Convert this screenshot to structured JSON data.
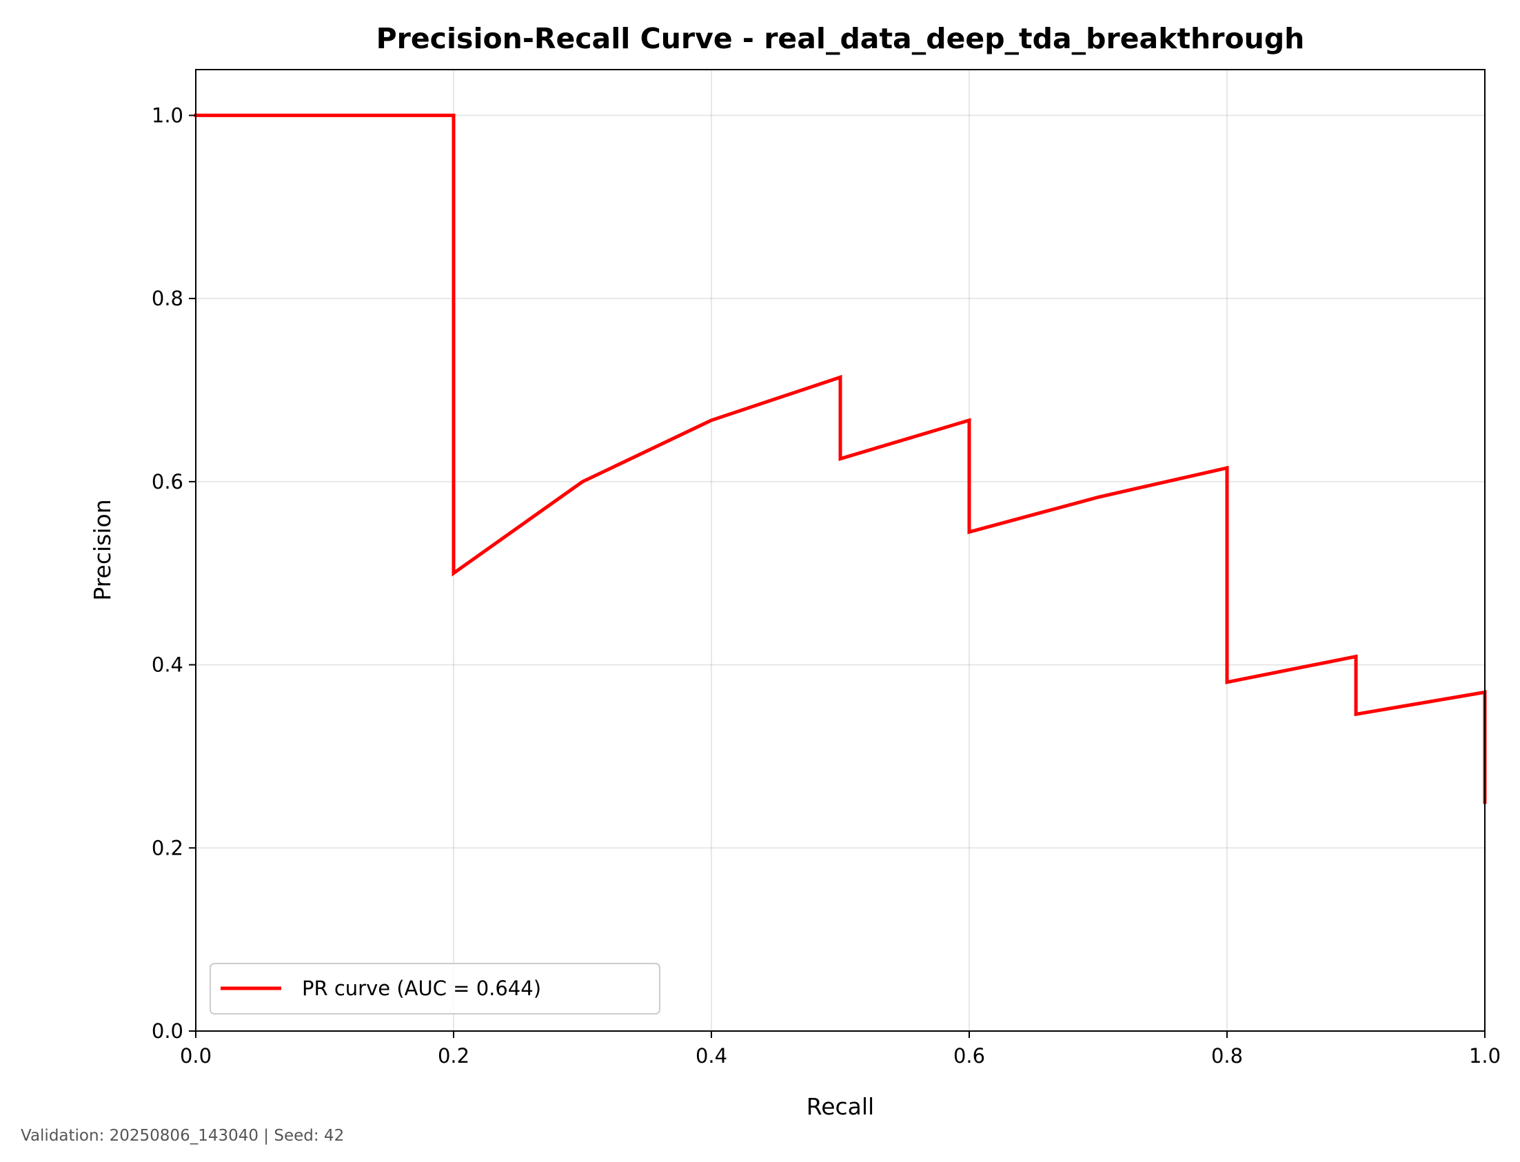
{
  "chart_data": {
    "type": "line",
    "title": "Precision-Recall Curve - real_data_deep_tda_breakthrough",
    "xlabel": "Recall",
    "ylabel": "Precision",
    "xlim": [
      0.0,
      1.0
    ],
    "ylim": [
      0.0,
      1.05
    ],
    "xticks": [
      0.0,
      0.2,
      0.4,
      0.6,
      0.8,
      1.0
    ],
    "yticks": [
      0.0,
      0.2,
      0.4,
      0.6,
      0.8,
      1.0
    ],
    "xtick_labels": [
      "0.0",
      "0.2",
      "0.4",
      "0.6",
      "0.8",
      "1.0"
    ],
    "ytick_labels": [
      "0.0",
      "0.2",
      "0.4",
      "0.6",
      "0.8",
      "1.0"
    ],
    "grid": true,
    "legend_position": "lower-left",
    "series": [
      {
        "name": "PR curve (AUC = 0.644)",
        "color": "#ff0000",
        "x": [
          0.0,
          0.2,
          0.2,
          0.3,
          0.4,
          0.5,
          0.5,
          0.6,
          0.6,
          0.7,
          0.8,
          0.8,
          0.9,
          0.9,
          1.0,
          1.0
        ],
        "y": [
          1.0,
          1.0,
          0.5,
          0.6,
          0.667,
          0.714,
          0.625,
          0.667,
          0.545,
          0.583,
          0.615,
          0.381,
          0.409,
          0.346,
          0.37,
          0.25
        ]
      }
    ]
  },
  "footer": {
    "text": "Validation: 20250806_143040 | Seed: 42"
  }
}
